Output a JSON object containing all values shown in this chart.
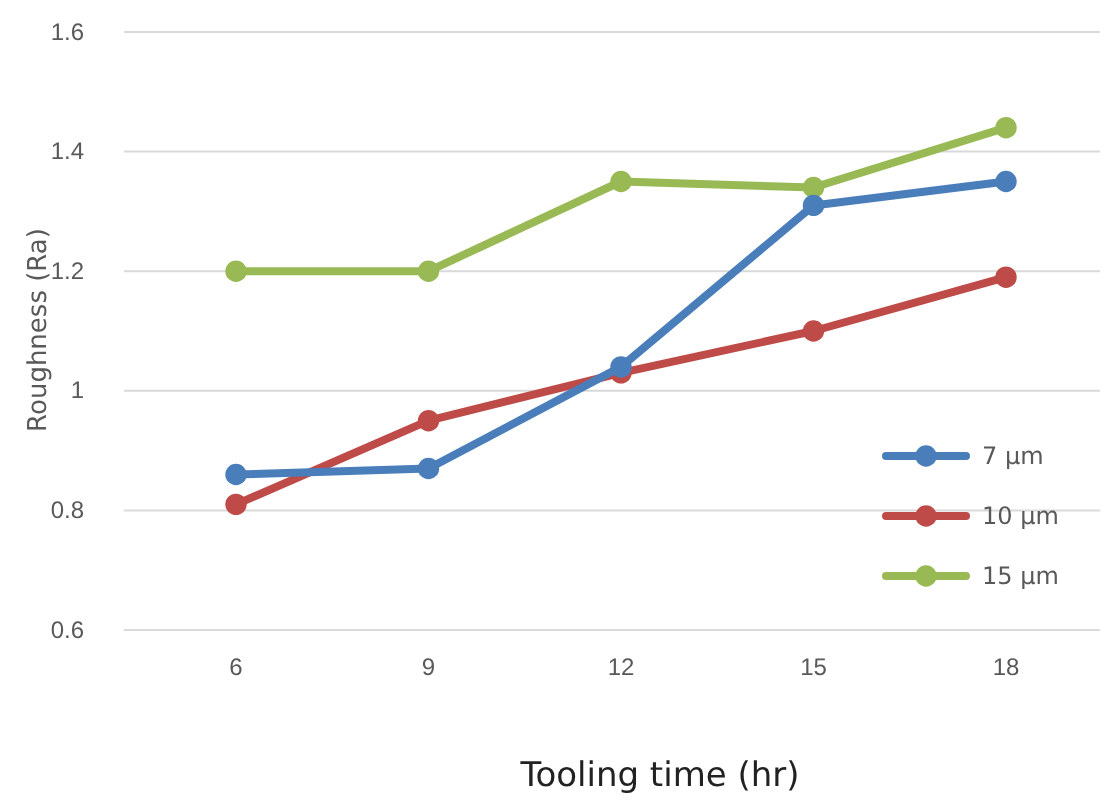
{
  "chart_data": {
    "type": "line",
    "xlabel": "Tooling time (hr)",
    "ylabel": "Roughness (Ra)",
    "categories": [
      "6",
      "9",
      "12",
      "15",
      "18"
    ],
    "series": [
      {
        "name": "7 µm",
        "color": "#4a7ebb",
        "values": [
          0.86,
          0.87,
          1.04,
          1.31,
          1.35
        ]
      },
      {
        "name": "10 µm",
        "color": "#be4b48",
        "values": [
          0.81,
          0.95,
          1.03,
          1.1,
          1.19
        ]
      },
      {
        "name": "15 µm",
        "color": "#98b954",
        "values": [
          1.2,
          1.2,
          1.35,
          1.34,
          1.44
        ]
      }
    ],
    "ylim": [
      0.6,
      1.6
    ],
    "yticks": [
      0.6,
      0.8,
      {
        "value": 1,
        "label": "1"
      },
      1.2,
      1.4,
      1.6
    ],
    "grid": "y",
    "legend": "right",
    "marker": "circle",
    "line_style": "solid"
  }
}
